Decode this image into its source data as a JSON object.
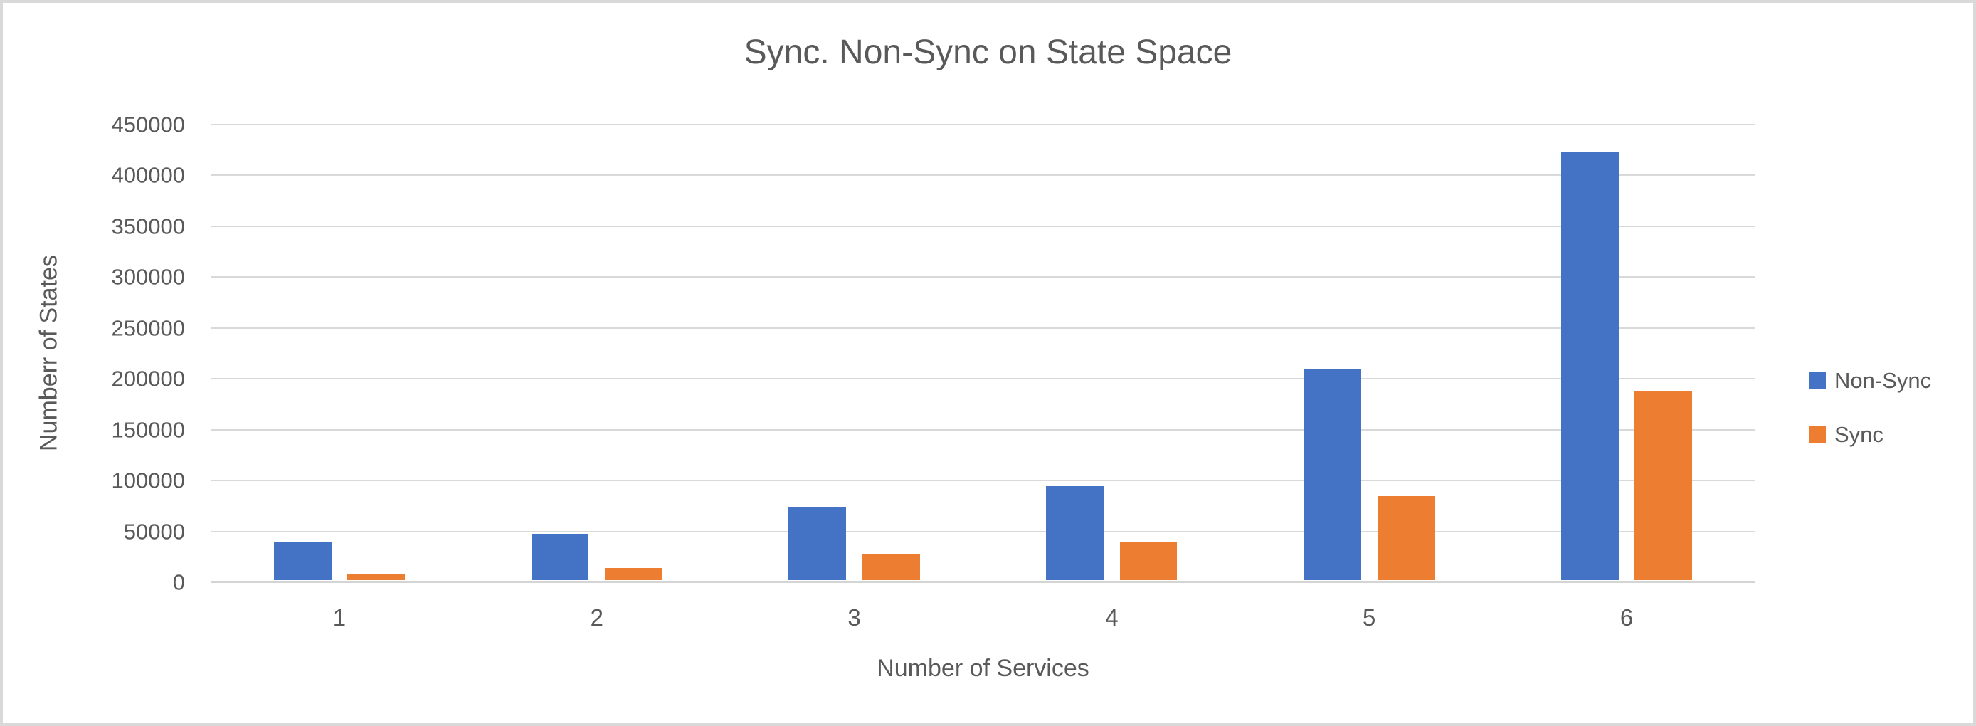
{
  "chart_data": {
    "type": "bar",
    "title": "Sync. Non-Sync on State Space",
    "xlabel": "Number of Services",
    "ylabel": "Numberr of States",
    "categories": [
      "1",
      "2",
      "3",
      "4",
      "5",
      "6"
    ],
    "series": [
      {
        "name": "Non-Sync",
        "color": "#4472C4",
        "values": [
          37000,
          46000,
          72000,
          93000,
          209000,
          423000
        ]
      },
      {
        "name": "Sync",
        "color": "#ED7D31",
        "values": [
          6500,
          12000,
          25000,
          37000,
          83000,
          186000
        ]
      }
    ],
    "ylim": [
      0,
      450000
    ],
    "y_tick_step": 50000,
    "y_ticks": [
      0,
      50000,
      100000,
      150000,
      200000,
      250000,
      300000,
      350000,
      400000,
      450000
    ],
    "grid": "horizontal",
    "legend_position": "right"
  },
  "styles": {
    "text_color": "#595959",
    "gridline_color": "#D9D9D9",
    "axis_line_color": "#D4D4D4",
    "background": "#FFFFFF",
    "border_color": "#D9D9D9"
  }
}
